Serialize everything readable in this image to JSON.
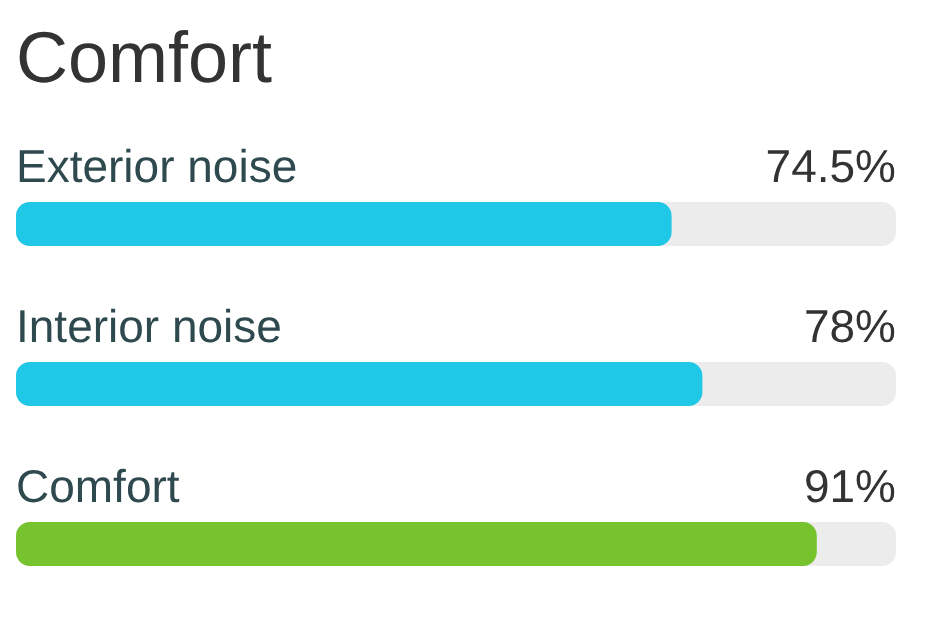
{
  "chart_data": {
    "type": "bar",
    "orientation": "horizontal",
    "title": "Comfort",
    "categories": [
      "Exterior noise",
      "Interior noise",
      "Comfort"
    ],
    "values": [
      74.5,
      78,
      91
    ],
    "value_labels": [
      "74.5%",
      "78%",
      "91%"
    ],
    "colors": [
      "#1ec8e6",
      "#1ec8e6",
      "#76c32e"
    ],
    "xlim": [
      0,
      100
    ]
  }
}
